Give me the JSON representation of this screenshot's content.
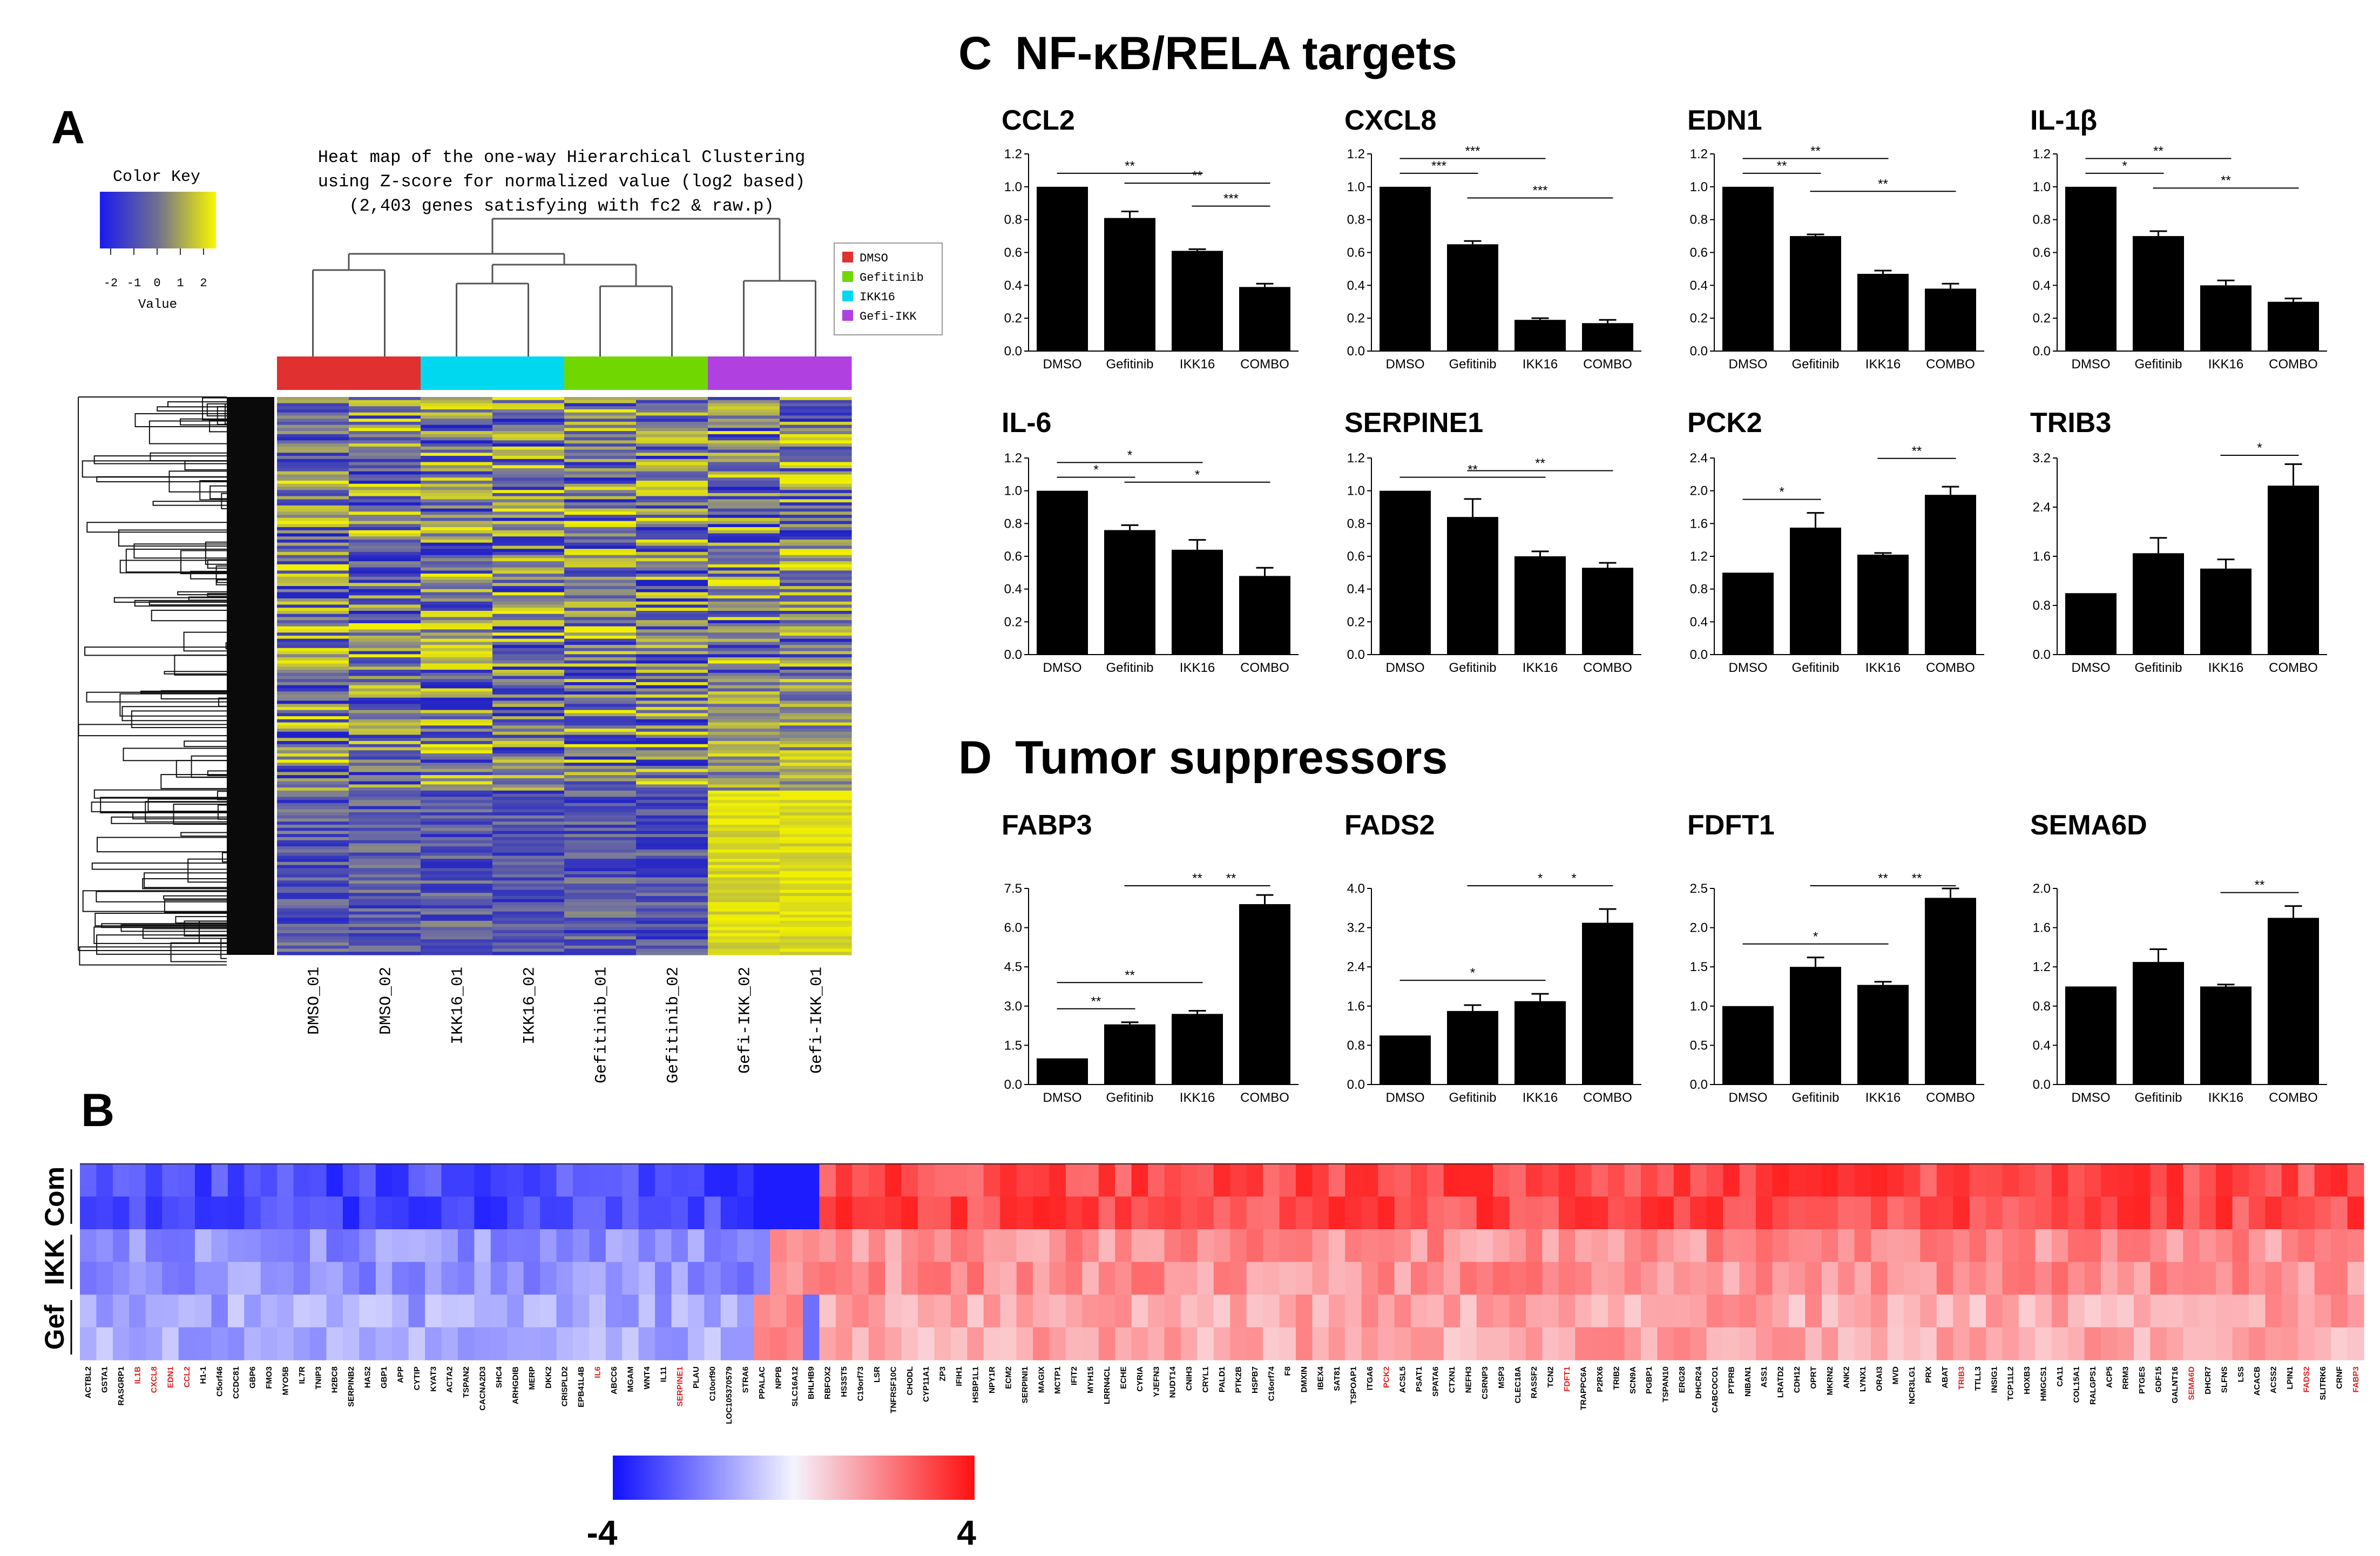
{
  "panels": {
    "A": "A",
    "B": "B",
    "C_letter": "C",
    "C_title": "NF-κB/RELA targets",
    "D_letter": "D",
    "D_title": "Tumor suppressors"
  },
  "colors": {
    "bar": "#000000",
    "heat_low": "#2020c8",
    "heat_mid": "#7a7a9a",
    "heat_high": "#f0f000",
    "b_low": "#1010ff",
    "b_high": "#ff1010",
    "dmso": "#e03030",
    "ikk16": "#00d8f0",
    "gefitinib": "#70d800",
    "gefi_ikk": "#b040e0",
    "highlight_gene": "#e02020"
  },
  "heatmap_A": {
    "title_line1": "Heat map of the one-way Hierarchical Clustering",
    "title_line2": "using Z-score for normalized value (log2 based)",
    "title_line3": "(2,403 genes satisfying with fc2 & raw.p)",
    "color_key_title": "Color Key",
    "color_key_ticks": [
      "-2",
      "-1",
      "0",
      "1",
      "2"
    ],
    "color_key_label": "Value",
    "legend": [
      {
        "label": "DMSO",
        "color": "#e03030"
      },
      {
        "label": "Gefitinib",
        "color": "#70d800"
      },
      {
        "label": "IKK16",
        "color": "#00d8f0"
      },
      {
        "label": "Gefi-IKK",
        "color": "#b040e0"
      }
    ],
    "samples": [
      "DMSO_01",
      "DMSO_02",
      "IKK16_01",
      "IKK16_02",
      "Gefitinib_01",
      "Gefitinib_02",
      "Gefi-IKK_02",
      "Gefi-IKK_01"
    ],
    "sample_groups": [
      "DMSO",
      "DMSO",
      "IKK16",
      "IKK16",
      "Gefitinib",
      "Gefitinib",
      "Gefi-IKK",
      "Gefi-IKK"
    ]
  },
  "chart_data": [
    {
      "type": "bar",
      "title": "CCL2",
      "categories": [
        "DMSO",
        "Gefitinib",
        "IKK16",
        "COMBO"
      ],
      "values": [
        1.0,
        0.81,
        0.61,
        0.39
      ],
      "errors": [
        0,
        0.04,
        0.01,
        0.02
      ],
      "ylim": [
        0,
        1.2
      ],
      "yticks": [
        "0.0",
        "0.2",
        "0.4",
        "0.6",
        "0.8",
        "1.0",
        "1.2"
      ],
      "significance": [
        {
          "from": 0,
          "to": 2,
          "label": "**"
        },
        {
          "from": 1,
          "to": 3,
          "label": "**"
        },
        {
          "from": 2,
          "to": 3,
          "label": "***"
        }
      ]
    },
    {
      "type": "bar",
      "title": "CXCL8",
      "categories": [
        "DMSO",
        "Gefitinib",
        "IKK16",
        "COMBO"
      ],
      "values": [
        1.0,
        0.65,
        0.19,
        0.17
      ],
      "errors": [
        0,
        0.02,
        0.01,
        0.02
      ],
      "ylim": [
        0,
        1.2
      ],
      "yticks": [
        "0.0",
        "0.2",
        "0.4",
        "0.6",
        "0.8",
        "1.0",
        "1.2"
      ],
      "significance": [
        {
          "from": 0,
          "to": 1,
          "label": "***"
        },
        {
          "from": 0,
          "to": 2,
          "label": "***"
        },
        {
          "from": 1,
          "to": 3,
          "label": "***"
        }
      ]
    },
    {
      "type": "bar",
      "title": "EDN1",
      "categories": [
        "DMSO",
        "Gefitinib",
        "IKK16",
        "COMBO"
      ],
      "values": [
        1.0,
        0.7,
        0.47,
        0.38
      ],
      "errors": [
        0,
        0.01,
        0.02,
        0.03
      ],
      "ylim": [
        0,
        1.2
      ],
      "yticks": [
        "0.0",
        "0.2",
        "0.4",
        "0.6",
        "0.8",
        "1.0",
        "1.2"
      ],
      "significance": [
        {
          "from": 0,
          "to": 1,
          "label": "**"
        },
        {
          "from": 0,
          "to": 2,
          "label": "**"
        },
        {
          "from": 1,
          "to": 3,
          "label": "**"
        }
      ]
    },
    {
      "type": "bar",
      "title": "IL-1β",
      "categories": [
        "DMSO",
        "Gefitinib",
        "IKK16",
        "COMBO"
      ],
      "values": [
        1.0,
        0.7,
        0.4,
        0.3
      ],
      "errors": [
        0,
        0.03,
        0.03,
        0.02
      ],
      "ylim": [
        0,
        1.2
      ],
      "yticks": [
        "0.0",
        "0.2",
        "0.4",
        "0.6",
        "0.8",
        "1.0",
        "1.2"
      ],
      "significance": [
        {
          "from": 0,
          "to": 1,
          "label": "*"
        },
        {
          "from": 0,
          "to": 2,
          "label": "**"
        },
        {
          "from": 1,
          "to": 3,
          "label": "**"
        }
      ]
    },
    {
      "type": "bar",
      "title": "IL-6",
      "categories": [
        "DMSO",
        "Gefitinib",
        "IKK16",
        "COMBO"
      ],
      "values": [
        1.0,
        0.76,
        0.64,
        0.48
      ],
      "errors": [
        0,
        0.03,
        0.06,
        0.05
      ],
      "ylim": [
        0,
        1.2
      ],
      "yticks": [
        "0.0",
        "0.2",
        "0.4",
        "0.6",
        "0.8",
        "1.0",
        "1.2"
      ],
      "significance": [
        {
          "from": 0,
          "to": 1,
          "label": "*"
        },
        {
          "from": 0,
          "to": 2,
          "label": "*"
        },
        {
          "from": 1,
          "to": 3,
          "label": "*"
        }
      ]
    },
    {
      "type": "bar",
      "title": "SERPINE1",
      "categories": [
        "DMSO",
        "Gefitinib",
        "IKK16",
        "COMBO"
      ],
      "values": [
        1.0,
        0.84,
        0.6,
        0.53
      ],
      "errors": [
        0,
        0.11,
        0.03,
        0.03
      ],
      "ylim": [
        0,
        1.2
      ],
      "yticks": [
        "0.0",
        "0.2",
        "0.4",
        "0.6",
        "0.8",
        "1.0",
        "1.2"
      ],
      "significance": [
        {
          "from": 0,
          "to": 2,
          "label": "**"
        },
        {
          "from": 1,
          "to": 3,
          "label": "**"
        }
      ]
    },
    {
      "type": "bar",
      "title": "PCK2",
      "categories": [
        "DMSO",
        "Gefitinib",
        "IKK16",
        "COMBO"
      ],
      "values": [
        1.0,
        1.55,
        1.22,
        1.95
      ],
      "errors": [
        0,
        0.18,
        0.02,
        0.1
      ],
      "ylim": [
        0,
        2.4
      ],
      "yticks": [
        "0.0",
        "0.4",
        "0.8",
        "1.2",
        "1.6",
        "2.0",
        "2.4"
      ],
      "significance": [
        {
          "from": 0,
          "to": 1,
          "label": "*"
        },
        {
          "from": 2,
          "to": 3,
          "label": "**"
        }
      ]
    },
    {
      "type": "bar",
      "title": "TRIB3",
      "categories": [
        "DMSO",
        "Gefitinib",
        "IKK16",
        "COMBO"
      ],
      "values": [
        1.0,
        1.65,
        1.4,
        2.75
      ],
      "errors": [
        0,
        0.25,
        0.15,
        0.35
      ],
      "ylim": [
        0,
        3.2
      ],
      "yticks": [
        "0.0",
        "0.8",
        "1.6",
        "2.4",
        "3.2"
      ],
      "significance": [
        {
          "from": 2,
          "to": 3,
          "label": "*"
        }
      ]
    },
    {
      "type": "bar",
      "title": "FABP3",
      "categories": [
        "DMSO",
        "Gefitinib",
        "IKK16",
        "COMBO"
      ],
      "values": [
        1.0,
        2.3,
        2.7,
        6.9
      ],
      "errors": [
        0,
        0.08,
        0.12,
        0.35
      ],
      "ylim": [
        0,
        7.5
      ],
      "yticks": [
        "0.0",
        "1.5",
        "3.0",
        "4.5",
        "6.0",
        "7.5"
      ],
      "significance": [
        {
          "from": 0,
          "to": 1,
          "label": "**"
        },
        {
          "from": 0,
          "to": 2,
          "label": "**"
        },
        {
          "from": 1,
          "to": 3,
          "label": "**"
        },
        {
          "from": 2,
          "to": 3,
          "label": "**"
        }
      ]
    },
    {
      "type": "bar",
      "title": "FADS2",
      "categories": [
        "DMSO",
        "Gefitinib",
        "IKK16",
        "COMBO"
      ],
      "values": [
        1.0,
        1.5,
        1.7,
        3.3
      ],
      "errors": [
        0,
        0.12,
        0.15,
        0.28
      ],
      "ylim": [
        0,
        4.0
      ],
      "yticks": [
        "0.0",
        "0.8",
        "1.6",
        "2.4",
        "3.2",
        "4.0"
      ],
      "significance": [
        {
          "from": 0,
          "to": 2,
          "label": "*"
        },
        {
          "from": 1,
          "to": 3,
          "label": "*"
        },
        {
          "from": 2,
          "to": 3,
          "label": "*"
        }
      ]
    },
    {
      "type": "bar",
      "title": "FDFT1",
      "categories": [
        "DMSO",
        "Gefitinib",
        "IKK16",
        "COMBO"
      ],
      "values": [
        1.0,
        1.5,
        1.27,
        2.38
      ],
      "errors": [
        0,
        0.12,
        0.04,
        0.12
      ],
      "ylim": [
        0,
        2.5
      ],
      "yticks": [
        "0.0",
        "0.5",
        "1.0",
        "1.5",
        "2.0",
        "2.5"
      ],
      "significance": [
        {
          "from": 0,
          "to": 2,
          "label": "*"
        },
        {
          "from": 1,
          "to": 3,
          "label": "**"
        },
        {
          "from": 2,
          "to": 3,
          "label": "**"
        }
      ]
    },
    {
      "type": "bar",
      "title": "SEMA6D",
      "categories": [
        "DMSO",
        "Gefitinib",
        "IKK16",
        "COMBO"
      ],
      "values": [
        1.0,
        1.25,
        1.0,
        1.7
      ],
      "errors": [
        0,
        0.13,
        0.02,
        0.12
      ],
      "ylim": [
        0,
        2.0
      ],
      "yticks": [
        "0.0",
        "0.4",
        "0.8",
        "1.2",
        "1.6",
        "2.0"
      ],
      "significance": [
        {
          "from": 2,
          "to": 3,
          "label": "**"
        }
      ]
    }
  ],
  "heatmap_B": {
    "rows": [
      "Com",
      "IKK",
      "Gef"
    ],
    "scale_min": "-4",
    "scale_max": "4",
    "highlighted_genes": [
      "IL1B",
      "CXCL8",
      "EDN1",
      "CCL2",
      "IL6",
      "SERPINE1",
      "PCK2",
      "FDFT1",
      "TRIB3",
      "SEMA6D",
      "FADS2",
      "FABP3"
    ],
    "genes": [
      "ACTBL2",
      "GSTA1",
      "RASGRP1",
      "IL1B",
      "CXCL8",
      "EDN1",
      "CCL2",
      "H1-1",
      "C5orf46",
      "CCDC81",
      "GBP6",
      "FMO3",
      "MYO5B",
      "IL7R",
      "TNIP3",
      "H2BC8",
      "SERPINB2",
      "HAS2",
      "GBP1",
      "APP",
      "CYTIP",
      "KYAT3",
      "ACTA2",
      "TSPAN2",
      "CACNA2D3",
      "SHC4",
      "ARHGDIB",
      "MERP",
      "DKK2",
      "CRISPLD2",
      "EPB41L4B",
      "IL6",
      "ABCC6",
      "MGAM",
      "WNT4",
      "IL11",
      "SERPINE1",
      "PLAU",
      "C10orf90",
      "LOC105370579",
      "STRA6",
      "PPALAC",
      "NPPB",
      "SLC16A12",
      "BHLHB9",
      "RBFOX2",
      "HS3ST5",
      "C19orf73",
      "LSR",
      "TNFRSF10C",
      "CHODL",
      "CYP11A1",
      "ZP3",
      "IFIH1",
      "HSBP1L1",
      "NPY1R",
      "ECM2",
      "SERPINI1",
      "MAGIX",
      "MCTP1",
      "IFIT2",
      "MYH15",
      "LRRN4CL",
      "ECHE",
      "CYRIA",
      "YJEFN3",
      "NUDT14",
      "CNIH3",
      "CRYL1",
      "PALD1",
      "PTK2B",
      "HSPB7",
      "C16orf74",
      "F8",
      "DMXIN",
      "IBEX4",
      "SAT81",
      "TSPOAP1",
      "ITGA6",
      "PCK2",
      "ACSL5",
      "PSAT1",
      "SPATA6",
      "CTXN1",
      "NEFH3",
      "CSRNP3",
      "MSP3",
      "CLEC18A",
      "RASSF2",
      "TCN2",
      "FDFT1",
      "TRAPPC6A",
      "P2RX6",
      "TRIB2",
      "SCN9A",
      "PGBP1",
      "TSPAN10",
      "ERG28",
      "DHCR24",
      "CABCOCO1",
      "PTPRB",
      "NIBAN1",
      "ASS1",
      "LRATD2",
      "CDH12",
      "OPRT",
      "MKRN2",
      "ANK2",
      "LYNX1",
      "ORAI3",
      "MVD",
      "NCR3LG1",
      "PRX",
      "ABAT",
      "TRIB3",
      "TTLL3",
      "INSIG1",
      "TCP11L2",
      "HOXB3",
      "HMGCS1",
      "CA11",
      "COL15A1",
      "RALGPS1",
      "ACP5",
      "RRM3",
      "PTGES",
      "GDF15",
      "GALNT16",
      "SEMA6D",
      "DHCR7",
      "SLFNS",
      "LSS",
      "ACACB",
      "ACSS2",
      "LPIN1",
      "FADS2",
      "SLITRK6",
      "CRNF",
      "FABP3"
    ]
  }
}
